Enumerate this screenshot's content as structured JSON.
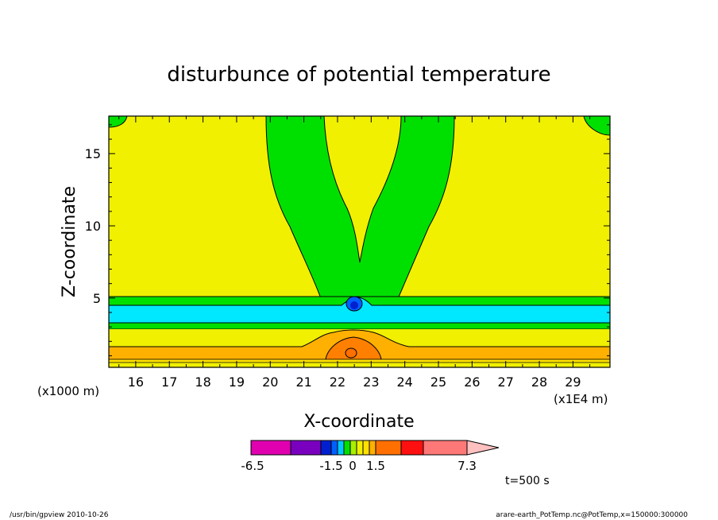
{
  "chart_data": {
    "type": "contour",
    "title": "disturbunce of potential temperature",
    "xlabel": "X-coordinate",
    "ylabel": "Z-coordinate",
    "x_unit_left": "(x1000 m)",
    "x_unit_right": "(x1E4 m)",
    "xlim": [
      15.2,
      30.1
    ],
    "ylim": [
      0.2,
      17.6
    ],
    "x_ticks": [
      16,
      17,
      18,
      19,
      20,
      21,
      22,
      23,
      24,
      25,
      26,
      27,
      28,
      29
    ],
    "y_ticks": [
      5,
      10,
      15
    ],
    "colorbar": {
      "levels": [
        -6.5,
        -4.5,
        -1.5,
        -1.2,
        -0.9,
        -0.6,
        -0.3,
        0,
        0.3,
        0.6,
        1.5,
        2.5,
        3.5,
        7.3
      ],
      "colors": [
        "#e000b0",
        "#7a00c0",
        "#0020d0",
        "#0060ff",
        "#00c8ff",
        "#00e000",
        "#a8f000",
        "#f0f000",
        "#ffe000",
        "#ffb000",
        "#ff7000",
        "#ff1010",
        "#ff7878",
        "#ffc0c0"
      ],
      "labels": [
        "-6.5",
        "-1.5",
        "0",
        "1.5",
        "7.3"
      ]
    },
    "footer_left": "/usr/bin/gpview   2010-10-26",
    "footer_right": "arare-earth_PotTemp.nc@PotTemp,x=150000:300000",
    "time_label": "t=500 s"
  }
}
